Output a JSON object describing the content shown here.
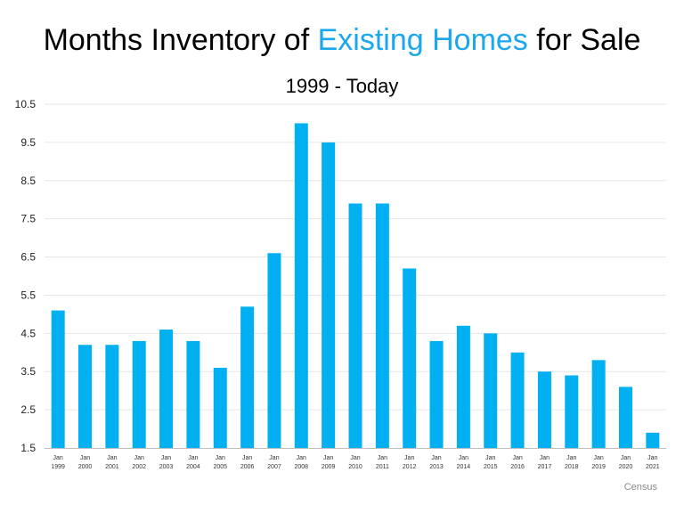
{
  "title": {
    "prefix": "Months Inventory of ",
    "highlight": "Existing Homes",
    "suffix": " for Sale",
    "highlight_color": "#1aa7ec"
  },
  "subtitle": "1999 - Today",
  "source": "Census",
  "chart_data": {
    "type": "bar",
    "title": "Months Inventory of Existing Homes for Sale",
    "subtitle": "1999 - Today",
    "xlabel": "",
    "ylabel": "",
    "ylim": [
      1.5,
      10.5
    ],
    "yticks": [
      "1.5",
      "2.5",
      "3.5",
      "4.5",
      "5.5",
      "6.5",
      "7.5",
      "8.5",
      "9.5",
      "10.5"
    ],
    "grid": true,
    "legend": "none",
    "bar_color": "#00b0f0",
    "categories": [
      [
        "Jan",
        "1999"
      ],
      [
        "Jan",
        "2000"
      ],
      [
        "Jan",
        "2001"
      ],
      [
        "Jan",
        "2002"
      ],
      [
        "Jan",
        "2003"
      ],
      [
        "Jan",
        "2004"
      ],
      [
        "Jan",
        "2005"
      ],
      [
        "Jan",
        "2006"
      ],
      [
        "Jan",
        "2007"
      ],
      [
        "Jan",
        "2008"
      ],
      [
        "Jan",
        "2009"
      ],
      [
        "Jan",
        "2010"
      ],
      [
        "Jan",
        "2011"
      ],
      [
        "Jan",
        "2012"
      ],
      [
        "Jan",
        "2013"
      ],
      [
        "Jan",
        "2014"
      ],
      [
        "Jan",
        "2015"
      ],
      [
        "Jan",
        "2016"
      ],
      [
        "Jan",
        "2017"
      ],
      [
        "Jan",
        "2018"
      ],
      [
        "Jan",
        "2019"
      ],
      [
        "Jan",
        "2020"
      ],
      [
        "Jan",
        "2021"
      ]
    ],
    "values": [
      5.1,
      4.2,
      4.2,
      4.3,
      4.6,
      4.3,
      3.6,
      5.2,
      6.6,
      10.0,
      9.5,
      7.9,
      7.9,
      6.2,
      4.3,
      4.7,
      4.5,
      4.0,
      3.5,
      3.4,
      3.8,
      3.1,
      1.9
    ]
  }
}
